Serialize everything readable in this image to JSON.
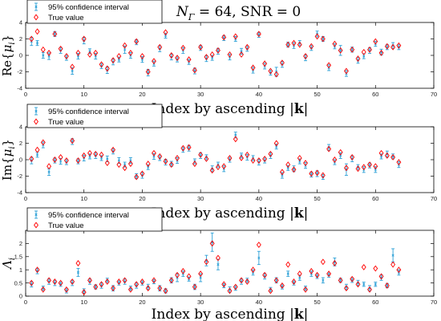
{
  "figure": {
    "title": "N_Γ = 64, SNR = 0",
    "title_main": "N",
    "title_sub": "Γ",
    "title_rest": " = 64, SNR = 0",
    "ci_color": "#2a9fd6",
    "true_color": "#ff0000"
  },
  "chart_data": [
    {
      "type": "scatter",
      "ylabel": "Re{μ_i}",
      "ylabel_parts": {
        "pre": "Re{",
        "var": "μ",
        "sub": "i",
        "post": "}"
      },
      "xlabel": "Index by ascending |k|",
      "xlabel_parts": {
        "pre": "Index by ascending |",
        "bold": "k",
        "post": "|"
      },
      "xlim": [
        0,
        70
      ],
      "ylim": [
        -4,
        4
      ],
      "xticks": [
        0,
        10,
        20,
        30,
        40,
        50,
        60,
        70
      ],
      "yticks": [
        -4,
        -2,
        0,
        2,
        4
      ],
      "legend": [
        "95% confidence interval",
        "True value"
      ],
      "legend_position": "top-left",
      "grid": false,
      "series": [
        {
          "name": "95% confidence interval",
          "x": [
            1,
            2,
            3,
            4,
            5,
            6,
            7,
            8,
            9,
            10,
            11,
            12,
            13,
            14,
            15,
            16,
            17,
            18,
            19,
            20,
            21,
            22,
            23,
            24,
            25,
            26,
            27,
            28,
            29,
            30,
            31,
            32,
            33,
            34,
            35,
            36,
            37,
            38,
            39,
            40,
            41,
            42,
            43,
            44,
            45,
            46,
            47,
            48,
            49,
            50,
            51,
            52,
            53,
            54,
            55,
            56,
            57,
            58,
            59,
            60,
            61,
            62,
            63,
            64
          ],
          "y": [
            1.7,
            1.5,
            0.0,
            -0.1,
            2.6,
            0.6,
            -0.3,
            -1.9,
            -0.1,
            1.8,
            0.5,
            -0.1,
            -1.3,
            -1.8,
            -0.8,
            -0.5,
            0.7,
            0.0,
            1.6,
            -0.5,
            -2.1,
            -1.0,
            0.8,
            2.4,
            -0.2,
            -0.5,
            0.6,
            -0.8,
            -1.9,
            0.9,
            -0.4,
            -0.3,
            0.5,
            2.1,
            -0.2,
            2.0,
            0.5,
            0.8,
            -1.8,
            2.5,
            -1.3,
            -2.1,
            -2.0,
            -1.1,
            1.3,
            1.2,
            1.5,
            -0.3,
            0.9,
            2.6,
            2.0,
            -1.5,
            1.1,
            0.6,
            -2.2,
            0.7,
            -0.6,
            -0.1,
            0.6,
            1.4,
            0.4,
            1.0,
            1.2,
            1.0
          ],
          "err": [
            0.5,
            0.3,
            0.35,
            0.4,
            0.3,
            0.35,
            0.3,
            0.4,
            0.35,
            0.4,
            0.3,
            0.35,
            0.3,
            0.4,
            0.35,
            0.3,
            0.45,
            0.35,
            0.3,
            0.35,
            0.4,
            0.3,
            0.35,
            0.3,
            0.35,
            0.3,
            0.35,
            0.3,
            0.35,
            0.3,
            0.35,
            0.3,
            0.35,
            0.3,
            0.35,
            0.3,
            0.35,
            0.3,
            0.35,
            0.3,
            0.35,
            0.3,
            0.55,
            0.35,
            0.3,
            0.35,
            0.3,
            0.35,
            0.3,
            0.35,
            0.3,
            0.35,
            0.3,
            0.6,
            0.35,
            0.3,
            0.35,
            0.3,
            0.35,
            0.3,
            0.35,
            0.3,
            0.35,
            0.3
          ]
        },
        {
          "name": "True value",
          "x": [
            1,
            2,
            3,
            4,
            5,
            6,
            7,
            8,
            9,
            10,
            11,
            12,
            13,
            14,
            15,
            16,
            17,
            18,
            19,
            20,
            21,
            22,
            23,
            24,
            25,
            26,
            27,
            28,
            29,
            30,
            31,
            32,
            33,
            34,
            35,
            36,
            37,
            38,
            39,
            40,
            41,
            42,
            43,
            44,
            45,
            46,
            47,
            48,
            49,
            50,
            51,
            52,
            53,
            54,
            55,
            56,
            57,
            58,
            59,
            60,
            61,
            62,
            63,
            64
          ],
          "y": [
            2.0,
            2.9,
            0.7,
            0.3,
            2.6,
            0.8,
            -0.1,
            -1.4,
            0.3,
            2.0,
            0.1,
            0.3,
            -1.1,
            -1.6,
            -0.6,
            -0.1,
            1.2,
            0.3,
            1.7,
            -0.1,
            -2.0,
            -0.7,
            1.0,
            2.8,
            0.0,
            -0.3,
            0.9,
            -0.5,
            -1.8,
            1.0,
            -0.2,
            0.1,
            0.6,
            2.2,
            0.1,
            2.3,
            0.1,
            1.0,
            -1.5,
            2.6,
            -1.0,
            -1.9,
            -2.3,
            -0.9,
            1.3,
            1.5,
            1.3,
            -0.1,
            1.1,
            2.3,
            2.0,
            -1.2,
            1.4,
            0.6,
            -1.9,
            0.7,
            -0.4,
            0.4,
            0.7,
            1.7,
            0.3,
            1.1,
            1.0,
            1.2
          ]
        }
      ]
    },
    {
      "type": "scatter",
      "ylabel": "Im{μ_i}",
      "ylabel_parts": {
        "pre": "Im{",
        "var": "μ",
        "sub": "i",
        "post": "}"
      },
      "xlabel": "Index by ascending |k|",
      "xlabel_parts": {
        "pre": "Index by ascending |",
        "bold": "k",
        "post": "|"
      },
      "xlim": [
        0,
        70
      ],
      "ylim": [
        -4,
        4
      ],
      "xticks": [
        0,
        10,
        20,
        30,
        40,
        50,
        60,
        70
      ],
      "yticks": [
        -4,
        -2,
        0,
        2,
        4
      ],
      "legend": [
        "95% confidence interval",
        "True value"
      ],
      "legend_position": "top-left",
      "grid": false,
      "series": [
        {
          "name": "95% confidence interval",
          "x": [
            1,
            2,
            3,
            4,
            5,
            6,
            7,
            8,
            9,
            10,
            11,
            12,
            13,
            14,
            15,
            16,
            17,
            18,
            19,
            20,
            21,
            22,
            23,
            24,
            25,
            26,
            27,
            28,
            29,
            30,
            31,
            32,
            33,
            34,
            35,
            36,
            37,
            38,
            39,
            40,
            41,
            42,
            43,
            44,
            45,
            46,
            47,
            48,
            49,
            50,
            51,
            52,
            53,
            54,
            55,
            56,
            57,
            58,
            59,
            60,
            61,
            62,
            63,
            64
          ],
          "y": [
            -0.1,
            0.6,
            1.8,
            -1.5,
            -0.1,
            -0.2,
            -0.3,
            2.2,
            -0.2,
            0.2,
            0.4,
            0.5,
            0.2,
            0.1,
            1.0,
            -0.1,
            -0.6,
            -0.1,
            -2.0,
            -1.9,
            -0.9,
            0.4,
            0.2,
            -0.3,
            -0.5,
            -0.1,
            1.2,
            1.4,
            -0.2,
            0.5,
            0.3,
            -1.1,
            -0.6,
            -1.1,
            0.0,
            3.0,
            0.5,
            0.3,
            0.2,
            -0.3,
            -0.1,
            0.5,
            1.6,
            -1.9,
            -1.0,
            -1.1,
            -0.2,
            -0.7,
            -1.8,
            -1.7,
            -2.1,
            1.5,
            -0.3,
            0.5,
            -1.2,
            0.1,
            -0.9,
            -1.2,
            -0.7,
            -1.2,
            0.4,
            0.7,
            0.4,
            -0.6
          ],
          "err": [
            0.4,
            0.3,
            0.35,
            0.4,
            0.3,
            0.35,
            0.3,
            0.35,
            0.3,
            0.35,
            0.3,
            0.35,
            0.3,
            0.35,
            0.3,
            0.35,
            0.3,
            0.35,
            0.3,
            0.35,
            0.3,
            0.35,
            0.3,
            0.35,
            0.3,
            0.35,
            0.3,
            0.35,
            0.3,
            0.35,
            0.3,
            0.35,
            0.3,
            0.35,
            0.3,
            0.35,
            0.3,
            0.35,
            0.3,
            0.35,
            0.3,
            0.35,
            0.3,
            0.35,
            0.3,
            0.35,
            0.3,
            0.35,
            0.3,
            0.35,
            0.3,
            0.35,
            0.3,
            0.35,
            0.7,
            0.35,
            0.3,
            0.35,
            0.3,
            0.35,
            0.3,
            0.35,
            0.3,
            0.35
          ]
        },
        {
          "name": "True value",
          "x": [
            1,
            2,
            3,
            4,
            5,
            6,
            7,
            8,
            9,
            10,
            11,
            12,
            13,
            14,
            15,
            16,
            17,
            18,
            19,
            20,
            21,
            22,
            23,
            24,
            25,
            26,
            27,
            28,
            29,
            30,
            31,
            32,
            33,
            34,
            35,
            36,
            37,
            38,
            39,
            40,
            41,
            42,
            43,
            44,
            45,
            46,
            47,
            48,
            49,
            50,
            51,
            52,
            53,
            54,
            55,
            56,
            57,
            58,
            59,
            60,
            61,
            62,
            63,
            64
          ],
          "y": [
            0.1,
            1.2,
            2.1,
            -0.8,
            0.0,
            0.3,
            -0.1,
            2.3,
            -0.1,
            0.5,
            0.8,
            0.7,
            0.6,
            -0.4,
            1.2,
            -0.6,
            -1.0,
            -0.5,
            -2.1,
            -1.7,
            -0.5,
            0.8,
            0.4,
            -0.2,
            -0.6,
            0.2,
            1.4,
            1.5,
            -0.5,
            0.6,
            0.1,
            -1.3,
            -0.9,
            -0.8,
            0.2,
            2.5,
            0.2,
            0.6,
            -0.1,
            -0.1,
            0.1,
            0.7,
            2.0,
            -1.5,
            -0.6,
            -1.2,
            0.2,
            -0.4,
            -1.7,
            -1.6,
            -1.9,
            1.3,
            0.0,
            0.9,
            -1.0,
            0.3,
            -1.1,
            -0.9,
            -0.6,
            -0.8,
            0.8,
            0.5,
            0.3,
            -0.3
          ]
        }
      ]
    },
    {
      "type": "scatter",
      "ylabel": "Λ_i",
      "ylabel_parts": {
        "pre": "",
        "var": "Λ",
        "sub": "i",
        "post": ""
      },
      "xlabel": "Index by ascending |k|",
      "xlabel_parts": {
        "pre": "Index by ascending |",
        "bold": "k",
        "post": "|"
      },
      "xlim": [
        0,
        70
      ],
      "ylim": [
        0,
        2.5
      ],
      "xticks": [
        0,
        10,
        20,
        30,
        40,
        50,
        60,
        70
      ],
      "yticks": [
        0,
        0.5,
        1,
        1.5,
        2
      ],
      "legend": [
        "95% confidence interval",
        "True value"
      ],
      "legend_position": "top-left",
      "grid": false,
      "series": [
        {
          "name": "95% confidence interval",
          "x": [
            1,
            2,
            3,
            4,
            5,
            6,
            7,
            8,
            9,
            10,
            11,
            12,
            13,
            14,
            15,
            16,
            17,
            18,
            19,
            20,
            21,
            22,
            23,
            24,
            25,
            26,
            27,
            28,
            29,
            30,
            31,
            32,
            33,
            34,
            35,
            36,
            37,
            38,
            39,
            40,
            41,
            42,
            43,
            44,
            45,
            46,
            47,
            48,
            49,
            50,
            51,
            52,
            53,
            54,
            55,
            56,
            57,
            58,
            59,
            60,
            61,
            62,
            63,
            64
          ],
          "y": [
            0.45,
            0.95,
            0.3,
            0.55,
            0.5,
            0.45,
            0.2,
            0.5,
            0.9,
            0.2,
            0.55,
            0.35,
            0.4,
            0.6,
            0.3,
            0.5,
            0.55,
            0.3,
            0.4,
            0.5,
            0.35,
            0.55,
            0.3,
            0.2,
            0.6,
            0.7,
            0.85,
            0.65,
            0.35,
            0.7,
            1.35,
            2.05,
            1.2,
            0.4,
            0.25,
            0.3,
            0.55,
            0.6,
            0.9,
            1.45,
            0.75,
            0.25,
            0.6,
            0.35,
            0.85,
            0.5,
            0.7,
            0.3,
            0.85,
            0.75,
            0.6,
            0.8,
            1.3,
            0.6,
            0.35,
            0.6,
            0.5,
            0.45,
            0.3,
            0.45,
            0.7,
            0.4,
            1.55,
            0.9
          ],
          "err": [
            0.1,
            0.1,
            0.08,
            0.1,
            0.1,
            0.08,
            0.08,
            0.1,
            0.15,
            0.08,
            0.1,
            0.08,
            0.1,
            0.08,
            0.1,
            0.08,
            0.1,
            0.08,
            0.1,
            0.08,
            0.1,
            0.08,
            0.1,
            0.08,
            0.1,
            0.15,
            0.1,
            0.08,
            0.1,
            0.15,
            0.2,
            0.35,
            0.2,
            0.08,
            0.1,
            0.08,
            0.1,
            0.08,
            0.1,
            0.25,
            0.1,
            0.08,
            0.1,
            0.08,
            0.1,
            0.08,
            0.1,
            0.08,
            0.1,
            0.08,
            0.1,
            0.08,
            0.15,
            0.08,
            0.1,
            0.08,
            0.1,
            0.08,
            0.1,
            0.08,
            0.1,
            0.08,
            0.25,
            0.1
          ]
        },
        {
          "name": "True value",
          "x": [
            1,
            2,
            3,
            4,
            5,
            6,
            7,
            8,
            9,
            10,
            11,
            12,
            13,
            14,
            15,
            16,
            17,
            18,
            19,
            20,
            21,
            22,
            23,
            24,
            25,
            26,
            27,
            28,
            29,
            30,
            31,
            32,
            33,
            34,
            35,
            36,
            37,
            38,
            39,
            40,
            41,
            42,
            43,
            44,
            45,
            46,
            47,
            48,
            49,
            50,
            51,
            52,
            53,
            54,
            55,
            56,
            57,
            58,
            59,
            60,
            61,
            62,
            63,
            64
          ],
          "y": [
            0.5,
            1.0,
            0.25,
            0.6,
            0.55,
            0.5,
            0.25,
            0.55,
            1.25,
            0.15,
            0.6,
            0.35,
            0.45,
            0.55,
            0.3,
            0.55,
            0.6,
            0.25,
            0.45,
            0.55,
            0.3,
            0.6,
            0.3,
            0.2,
            0.6,
            0.8,
            0.95,
            0.75,
            0.35,
            0.85,
            1.3,
            2.0,
            1.45,
            0.45,
            0.2,
            0.35,
            0.6,
            0.55,
            1.0,
            1.95,
            0.8,
            0.2,
            0.6,
            0.4,
            1.2,
            0.55,
            0.85,
            0.25,
            0.95,
            0.8,
            1.3,
            0.85,
            1.25,
            0.6,
            0.3,
            0.65,
            0.45,
            1.1,
            0.25,
            1.05,
            0.75,
            0.4,
            1.2,
            1.0
          ]
        }
      ]
    }
  ]
}
